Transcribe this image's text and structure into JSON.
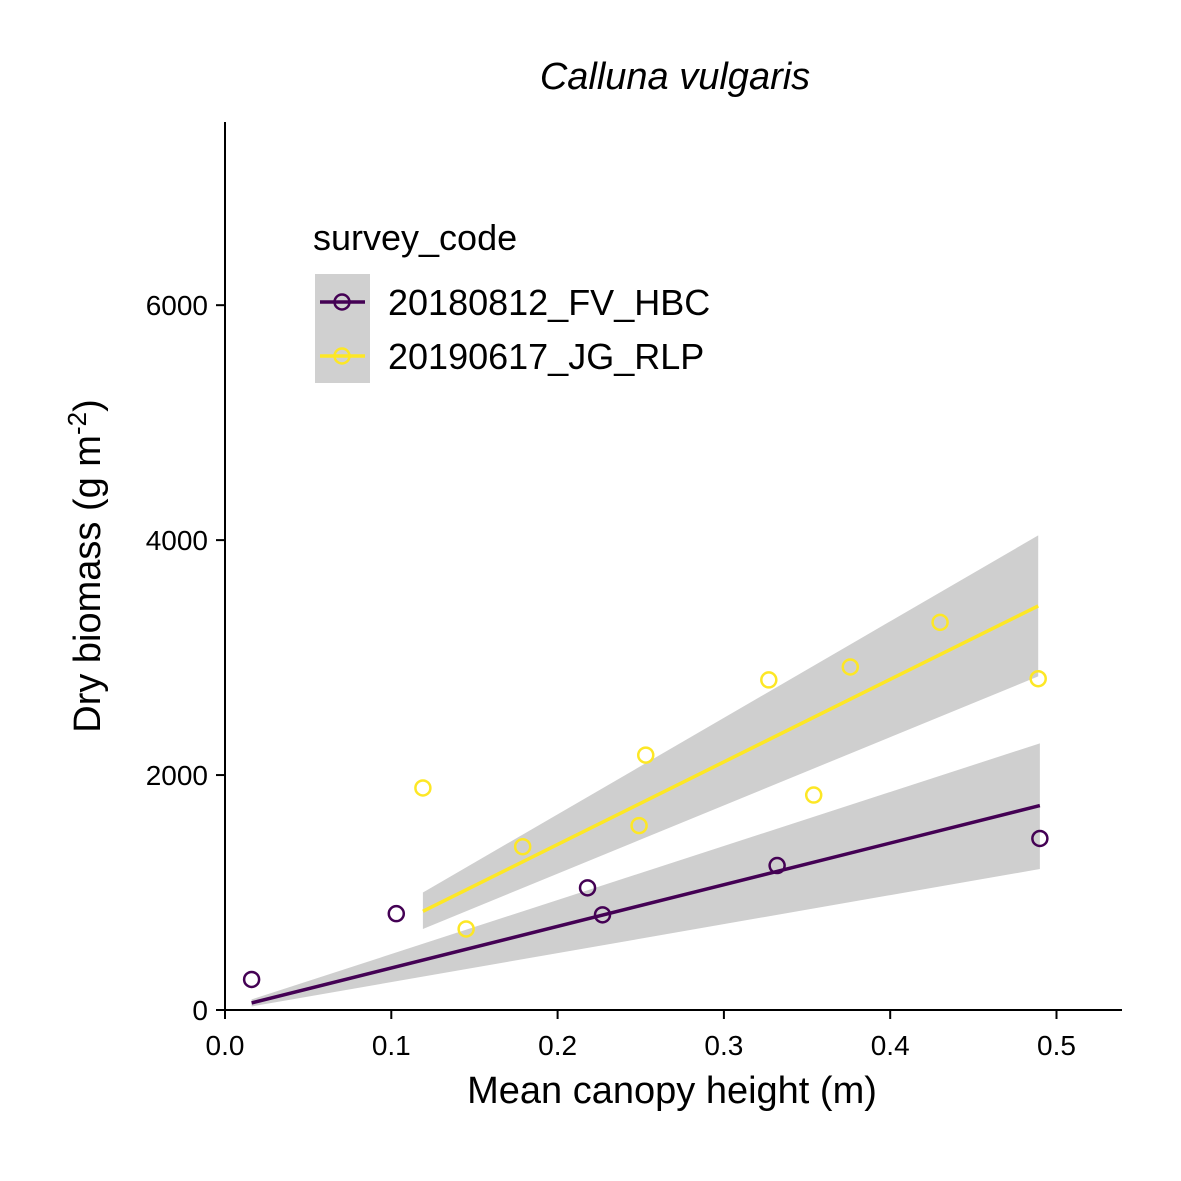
{
  "chart_data": {
    "type": "scatter",
    "title": "Calluna vulgaris",
    "xlabel": "Mean canopy height (m)",
    "ylabel": "Dry biomass (g m",
    "ylabel_sup": "-2",
    "ylabel_close": ")",
    "xlim": [
      0,
      0.54
    ],
    "ylim": [
      0,
      7500
    ],
    "xticks": [
      0.0,
      0.1,
      0.2,
      0.3,
      0.4,
      0.5
    ],
    "xtick_labels": [
      "0.0",
      "0.1",
      "0.2",
      "0.3",
      "0.4",
      "0.5"
    ],
    "yticks": [
      0,
      2000,
      4000,
      6000
    ],
    "ytick_labels": [
      "0",
      "2000",
      "4000",
      "6000"
    ],
    "grid": false,
    "legend": {
      "title": "survey_code",
      "placement": "top-left"
    },
    "series": [
      {
        "name": "20180812_FV_HBC",
        "color": "#440154",
        "points": [
          {
            "x": 0.016,
            "y": 260
          },
          {
            "x": 0.103,
            "y": 820
          },
          {
            "x": 0.218,
            "y": 1040
          },
          {
            "x": 0.227,
            "y": 810
          },
          {
            "x": 0.332,
            "y": 1230
          },
          {
            "x": 0.49,
            "y": 1460
          }
        ],
        "fit": {
          "x": [
            0.016,
            0.49
          ],
          "y": [
            60,
            1740
          ]
        },
        "band": {
          "x": [
            0.016,
            0.49
          ],
          "lower": [
            30,
            1200
          ],
          "upper": [
            90,
            2270
          ]
        }
      },
      {
        "name": "20190617_JG_RLP",
        "color": "#fde725",
        "points": [
          {
            "x": 0.119,
            "y": 1890
          },
          {
            "x": 0.145,
            "y": 690
          },
          {
            "x": 0.179,
            "y": 1390
          },
          {
            "x": 0.249,
            "y": 1570
          },
          {
            "x": 0.253,
            "y": 2170
          },
          {
            "x": 0.327,
            "y": 2810
          },
          {
            "x": 0.354,
            "y": 1830
          },
          {
            "x": 0.376,
            "y": 2920
          },
          {
            "x": 0.43,
            "y": 3300
          },
          {
            "x": 0.489,
            "y": 2820
          }
        ],
        "fit": {
          "x": [
            0.119,
            0.489
          ],
          "y": [
            840,
            3440
          ]
        },
        "band": {
          "x": [
            0.119,
            0.489
          ],
          "lower": [
            690,
            2840
          ],
          "upper": [
            1000,
            4040
          ]
        }
      }
    ]
  }
}
